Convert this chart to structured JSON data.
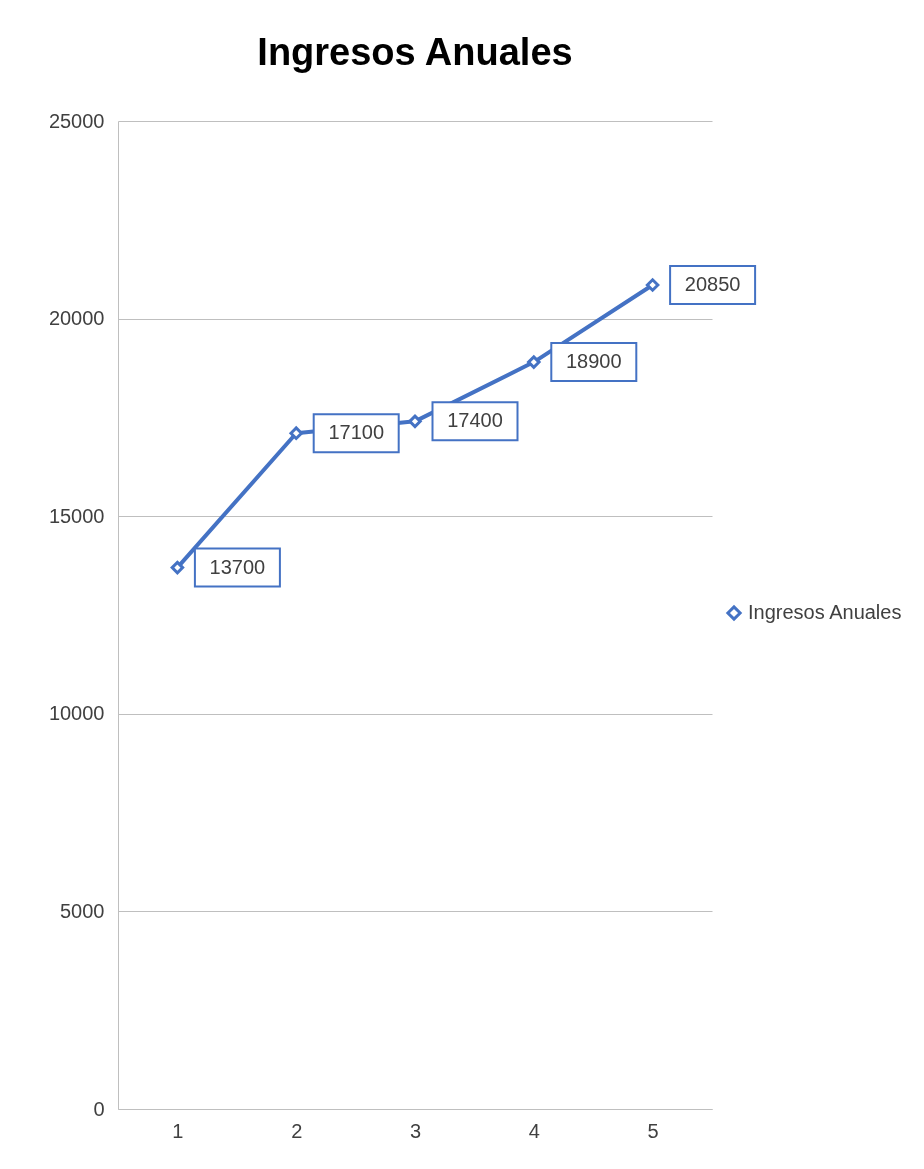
{
  "chart_data": {
    "type": "line",
    "title": "Ingresos Anuales",
    "categories": [
      "1",
      "2",
      "3",
      "4",
      "5"
    ],
    "series": [
      {
        "name": "Ingresos Anuales",
        "color": "#4472c4",
        "values": [
          13700,
          17100,
          17400,
          18900,
          20850
        ]
      }
    ],
    "ylim": [
      0,
      25000
    ],
    "yticks": [
      0,
      5000,
      10000,
      15000,
      20000,
      25000
    ],
    "grid": "y",
    "legend": "right",
    "marker": "diamond",
    "data_labels": true
  }
}
